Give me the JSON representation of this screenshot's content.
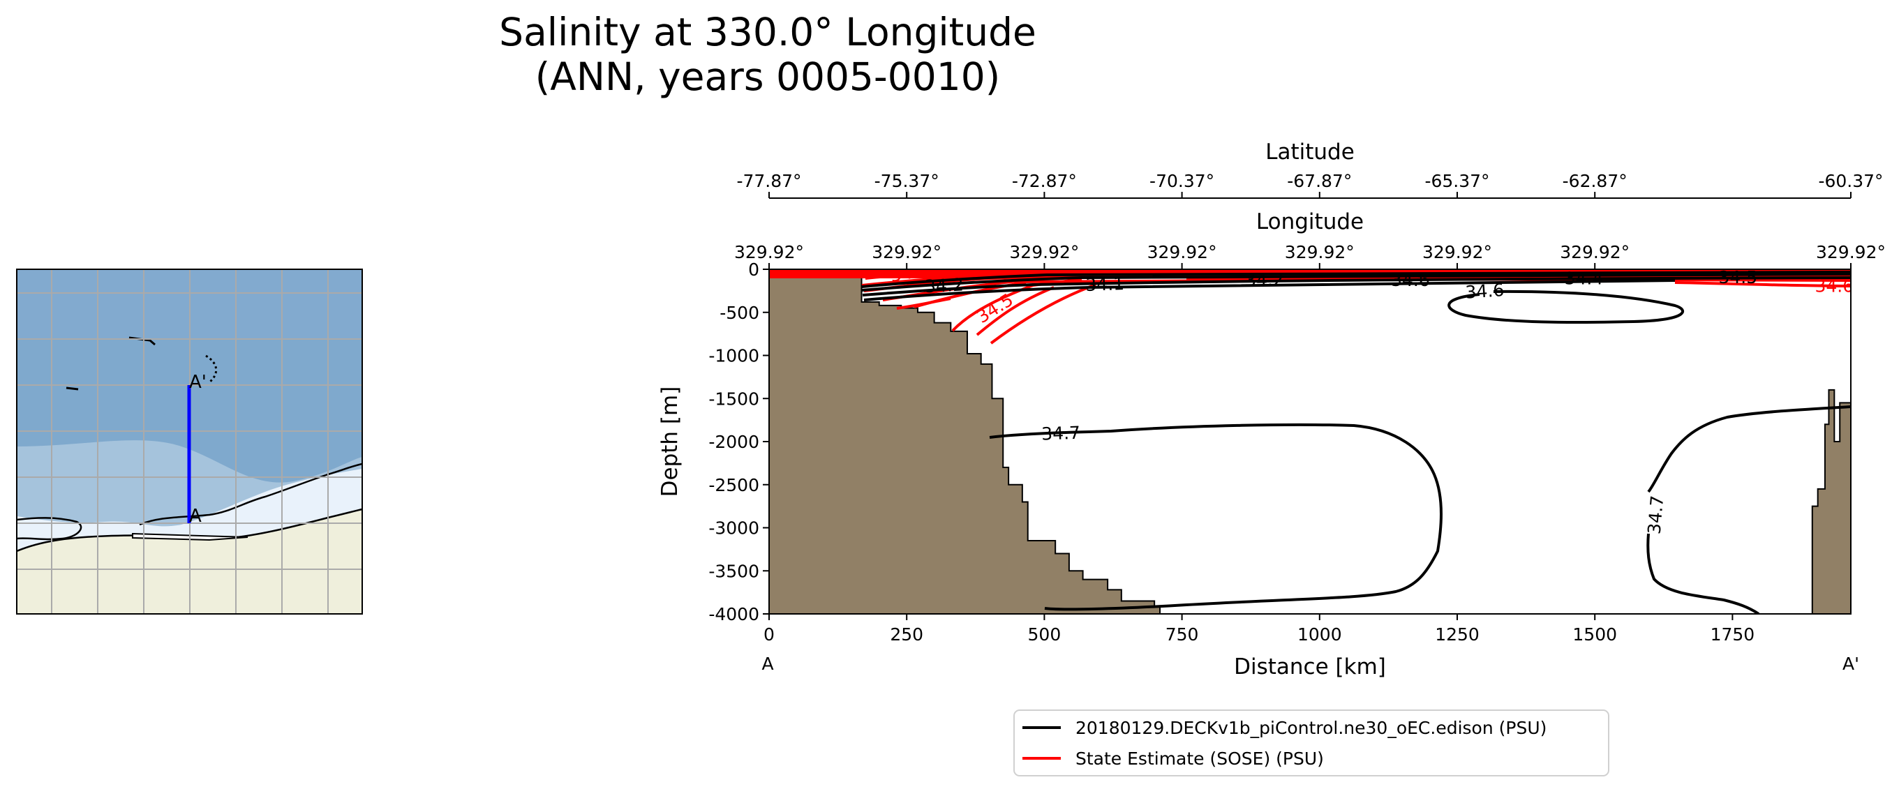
{
  "chart_data": {
    "type": "contour",
    "title_line1": "Salinity at 330.0° Longitude",
    "title_line2": "(ANN, years 0005-0010)",
    "xlabel": "Distance [km]",
    "ylabel": "Depth [m]",
    "xlim": [
      0,
      1965
    ],
    "ylim": [
      -4000,
      0
    ],
    "x_ticks": [
      0,
      250,
      500,
      750,
      1000,
      1250,
      1500,
      1750
    ],
    "y_ticks": [
      0,
      -500,
      -1000,
      -1500,
      -2000,
      -2500,
      -3000,
      -3500,
      -4000
    ],
    "section_start_label": "A",
    "section_end_label": "A'",
    "top_axis_1": {
      "label": "Longitude",
      "ticks": [
        "329.92°",
        "329.92°",
        "329.92°",
        "329.92°",
        "329.92°",
        "329.92°",
        "329.92°",
        "329.92°"
      ]
    },
    "top_axis_2": {
      "label": "Latitude",
      "ticks": [
        "-77.87°",
        "-75.37°",
        "-72.87°",
        "-70.37°",
        "-67.87°",
        "-65.37°",
        "-62.87°",
        "-60.37°"
      ]
    },
    "series": [
      {
        "name": "20180129.DECKv1b_piControl.ne30_oEC.edison (PSU)",
        "color": "#000000"
      },
      {
        "name": "State Estimate (SOSE) (PSU)",
        "color": "#ff0000"
      }
    ],
    "contour_labels": [
      {
        "text": "34.2",
        "x": 318,
        "y": -185,
        "series": 0,
        "rotation": -3
      },
      {
        "text": "34.1",
        "x": 610,
        "y": -170,
        "series": 0,
        "rotation": -2
      },
      {
        "text": "34.2",
        "x": 900,
        "y": -120,
        "series": 0,
        "rotation": -1
      },
      {
        "text": "34.6",
        "x": 1165,
        "y": -120,
        "series": 0,
        "rotation": 0
      },
      {
        "text": "34.6",
        "x": 1300,
        "y": -250,
        "series": 0,
        "rotation": -4
      },
      {
        "text": "34.4",
        "x": 1480,
        "y": -100,
        "series": 0,
        "rotation": 0
      },
      {
        "text": "34.5",
        "x": 1760,
        "y": -90,
        "series": 0,
        "rotation": 0
      },
      {
        "text": "34.7",
        "x": 530,
        "y": -1900,
        "series": 0,
        "rotation": -2
      },
      {
        "text": "34.7",
        "x": 1610,
        "y": -2850,
        "series": 0,
        "rotation": -85
      },
      {
        "text": "34.1",
        "x": 255,
        "y": -35,
        "series": 1,
        "rotation": -10
      },
      {
        "text": "34.5",
        "x": 410,
        "y": -450,
        "series": 1,
        "rotation": -32
      },
      {
        "text": "34.6",
        "x": 1935,
        "y": -190,
        "series": 1,
        "rotation": 0
      }
    ],
    "bathymetry": [
      [
        0,
        0
      ],
      [
        168,
        0
      ],
      [
        168,
        -380
      ],
      [
        200,
        -380
      ],
      [
        200,
        -420
      ],
      [
        240,
        -420
      ],
      [
        240,
        -450
      ],
      [
        270,
        -450
      ],
      [
        270,
        -500
      ],
      [
        300,
        -500
      ],
      [
        300,
        -620
      ],
      [
        330,
        -620
      ],
      [
        330,
        -720
      ],
      [
        360,
        -720
      ],
      [
        360,
        -980
      ],
      [
        385,
        -980
      ],
      [
        385,
        -1100
      ],
      [
        405,
        -1100
      ],
      [
        405,
        -1500
      ],
      [
        425,
        -1500
      ],
      [
        425,
        -2300
      ],
      [
        435,
        -2300
      ],
      [
        435,
        -2500
      ],
      [
        460,
        -2500
      ],
      [
        460,
        -2700
      ],
      [
        470,
        -2700
      ],
      [
        470,
        -3150
      ],
      [
        520,
        -3150
      ],
      [
        520,
        -3300
      ],
      [
        545,
        -3300
      ],
      [
        545,
        -3500
      ],
      [
        570,
        -3500
      ],
      [
        570,
        -3600
      ],
      [
        615,
        -3600
      ],
      [
        615,
        -3720
      ],
      [
        640,
        -3720
      ],
      [
        640,
        -3850
      ],
      [
        700,
        -3850
      ],
      [
        700,
        -3920
      ],
      [
        710,
        -3920
      ],
      [
        710,
        -4000
      ],
      [
        0,
        -4000
      ]
    ],
    "bathymetry_right": [
      [
        1965,
        -1550
      ],
      [
        1945,
        -1550
      ],
      [
        1945,
        -2000
      ],
      [
        1935,
        -2000
      ],
      [
        1935,
        -1400
      ],
      [
        1925,
        -1400
      ],
      [
        1925,
        -1800
      ],
      [
        1918,
        -1800
      ],
      [
        1918,
        -2550
      ],
      [
        1905,
        -2550
      ],
      [
        1905,
        -2750
      ],
      [
        1895,
        -2750
      ],
      [
        1895,
        -4000
      ],
      [
        1965,
        -4000
      ]
    ]
  },
  "map_inset": {
    "section_start_label": "A",
    "section_end_label": "A'"
  }
}
